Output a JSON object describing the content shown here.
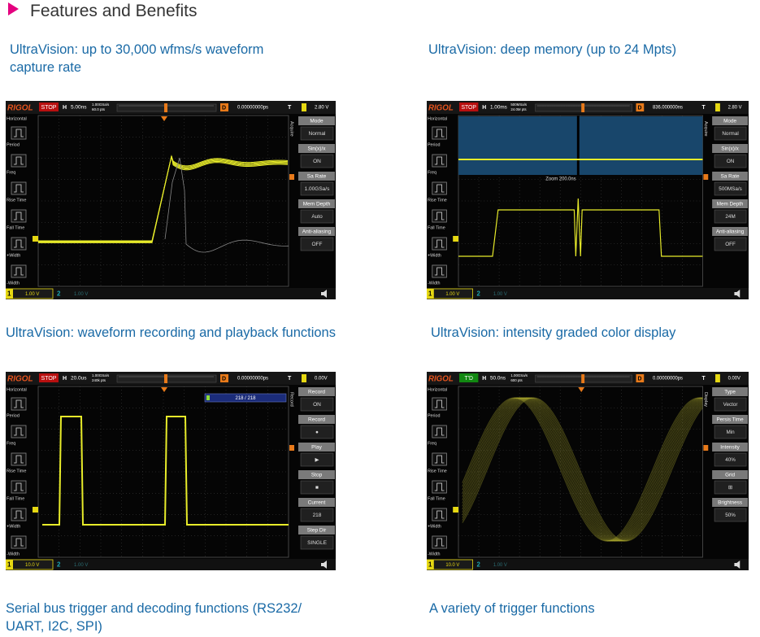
{
  "header": {
    "title": "Features and Benefits"
  },
  "features": [
    {
      "caption": "UltraVision: up to 30,000 wfms/s waveform capture rate",
      "screen": {
        "logo": "RIGOL",
        "status": "STOP",
        "h": "H",
        "timebase": "5.00ns",
        "memory": [
          "1.00GSa/s",
          "60.0 pts"
        ],
        "d": "D",
        "delay": "0.00000000ps",
        "t": "T",
        "trigger_level": "2.80 V",
        "left_menu": [
          "Horizontal",
          "Period",
          "Freq",
          "Rise Time",
          "Fall Time",
          "+Width",
          "-Width"
        ],
        "side_title": "Acquire",
        "softkeys": [
          {
            "label": "Mode",
            "value": "Normal"
          },
          {
            "label": "Sin(x)/x",
            "value": "ON"
          },
          {
            "label": "Sa Rate",
            "value": "1.00GSa/s"
          },
          {
            "label": "Mem Depth",
            "value": "Auto"
          },
          {
            "label": "Anti-aliasing",
            "value": "OFF"
          }
        ],
        "ch1": {
          "number": "1",
          "scale": "1.00 V"
        },
        "ch2": {
          "number": "2",
          "scale": "1.00 V"
        }
      }
    },
    {
      "caption": "UltraVision: deep memory (up to 24 Mpts)",
      "screen": {
        "logo": "RIGOL",
        "status": "STOP",
        "h": "H",
        "timebase": "1.00ms",
        "memory": [
          "500MSa/s",
          "24.0M pts"
        ],
        "d": "D",
        "delay": "836.000000ns",
        "t": "T",
        "trigger_level": "2.80 V",
        "left_menu": [
          "Horizontal",
          "Period",
          "Freq",
          "Rise Time",
          "Fall Time",
          "+Width",
          "-Width"
        ],
        "side_title": "Acquire",
        "softkeys": [
          {
            "label": "Mode",
            "value": "Normal"
          },
          {
            "label": "Sin(x)/x",
            "value": "ON"
          },
          {
            "label": "Sa Rate",
            "value": "500MSa/s"
          },
          {
            "label": "Mem Depth",
            "value": "24M"
          },
          {
            "label": "Anti-aliasing",
            "value": "OFF"
          }
        ],
        "zoom_label": "Zoom 200.0ns",
        "ch1": {
          "number": "1",
          "scale": "1.00 V"
        },
        "ch2": {
          "number": "2",
          "scale": "1.00 V"
        }
      }
    },
    {
      "caption": "UltraVision: waveform recording and playback functions",
      "screen": {
        "logo": "RIGOL",
        "status": "STOP",
        "h": "H",
        "timebase": "20.0us",
        "memory": [
          "1.00GSa/s",
          "240k pts"
        ],
        "d": "D",
        "delay": "0.00000000ps",
        "t": "T",
        "trigger_level": "0.00V",
        "left_menu": [
          "Horizontal",
          "Period",
          "Freq",
          "Rise Time",
          "Fall Time",
          "+Width",
          "-Width"
        ],
        "side_title": "Record",
        "softkeys": [
          {
            "label": "Record",
            "value": "ON"
          },
          {
            "label": "Record",
            "value": "●"
          },
          {
            "label": "Play",
            "value": "▶"
          },
          {
            "label": "Stop",
            "value": "■"
          },
          {
            "label": "Current",
            "value": "218"
          },
          {
            "label": "Step Dir",
            "value": "SINGLE"
          }
        ],
        "progress": "218 / 218",
        "ch1": {
          "number": "1",
          "scale": "10.0 V"
        },
        "ch2": {
          "number": "2",
          "scale": "1.00 V"
        }
      }
    },
    {
      "caption": "UltraVision: intensity graded color display",
      "screen": {
        "logo": "RIGOL",
        "status": "T'D",
        "h": "H",
        "timebase": "50.0ns",
        "memory": [
          "1.00GSa/s",
          "600 pts"
        ],
        "d": "D",
        "delay": "0.00000000ps",
        "t": "T",
        "trigger_level": "0.00V",
        "left_menu": [
          "Horizontal",
          "Period",
          "Freq",
          "Rise Time",
          "Fall Time",
          "+Width",
          "-Width"
        ],
        "side_title": "Display",
        "softkeys": [
          {
            "label": "Type",
            "value": "Vector"
          },
          {
            "label": "Persis Time",
            "value": "Min"
          },
          {
            "label": "Intensity",
            "value": "40%"
          },
          {
            "label": "Grid",
            "value": "⊞"
          },
          {
            "label": "Brightness",
            "value": "50%"
          }
        ],
        "ch1": {
          "number": "1",
          "scale": "10.0 V"
        },
        "ch2": {
          "number": "2",
          "scale": "1.00 V"
        }
      }
    },
    {
      "caption": "Serial bus trigger and decoding functions (RS232/ UART, I2C, SPI)"
    },
    {
      "caption": "A variety of trigger functions"
    }
  ]
}
